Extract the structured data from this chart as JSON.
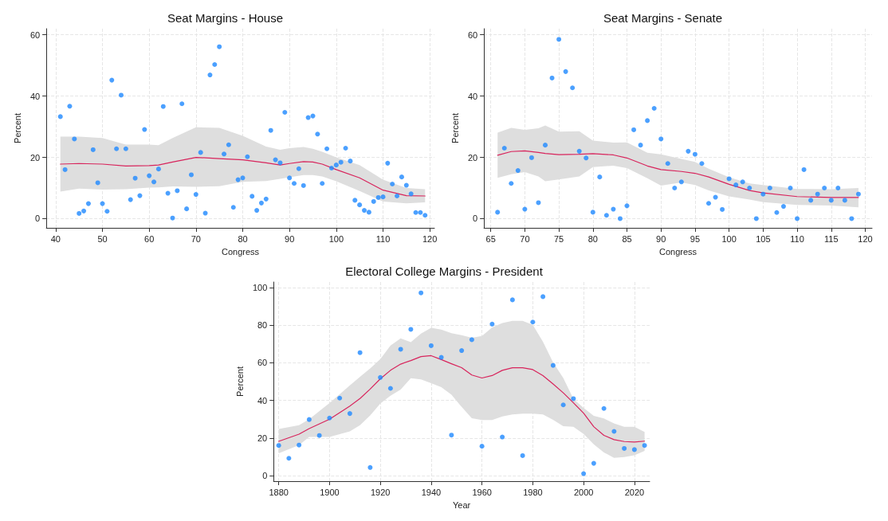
{
  "chart_data": [
    {
      "type": "scatter",
      "title": "Seat Margins - House",
      "xlabel": "Congress",
      "ylabel": "Percent",
      "xlim": [
        38,
        121
      ],
      "xticks": [
        40,
        50,
        60,
        70,
        80,
        90,
        100,
        110,
        120
      ],
      "ylim": [
        -3,
        62
      ],
      "yticks": [
        0,
        20,
        40,
        60
      ],
      "grid": true,
      "series": [
        {
          "marker": "circle",
          "color": "#1e88ff",
          "x": [
            41,
            42,
            43,
            44,
            45,
            46,
            47,
            48,
            49,
            50,
            51,
            52,
            53,
            54,
            55,
            56,
            57,
            58,
            59,
            60,
            61,
            62,
            63,
            64,
            65,
            66,
            67,
            68,
            69,
            70,
            71,
            72,
            73,
            74,
            75,
            76,
            77,
            78,
            79,
            80,
            81,
            82,
            83,
            84,
            85,
            86,
            87,
            88,
            89,
            90,
            91,
            92,
            93,
            94,
            95,
            96,
            97,
            98,
            99,
            100,
            101,
            102,
            103,
            104,
            105,
            106,
            107,
            108,
            109,
            110,
            111,
            112,
            113,
            114,
            115,
            116,
            117,
            118,
            119
          ],
          "values": [
            33.3,
            16,
            36.7,
            26,
            1.7,
            2.5,
            4.9,
            22.5,
            11.7,
            4.9,
            2.4,
            45.2,
            22.8,
            40.3,
            22.8,
            6.2,
            13.2,
            7.5,
            29.1,
            14,
            12,
            16.2,
            36.6,
            8.3,
            0.2,
            9.1,
            37.5,
            3.2,
            14.3,
            7.9,
            21.6,
            1.8,
            46.9,
            50.3,
            56.1,
            21.1,
            24.1,
            3.7,
            12.7,
            13.3,
            20.2,
            7.3,
            2.7,
            5.1,
            6.4,
            28.8,
            19.2,
            18.2,
            34.7,
            13.3,
            11.5,
            16.3,
            10.8,
            33,
            33.5,
            27.6,
            11.5,
            22.8,
            16.5,
            17.5,
            18.4,
            23,
            18.8,
            6,
            4.5,
            2.7,
            2.1,
            5.6,
            6.9,
            7.1,
            18.1,
            11.3,
            7.4,
            13.6,
            10.9,
            8.1,
            2,
            2,
            1.1
          ]
        },
        {
          "type": "line",
          "line_style": "solid",
          "color": "#d8245c",
          "x": [
            41,
            45,
            50,
            55,
            60,
            62,
            65,
            70,
            75,
            80,
            85,
            88,
            90,
            93,
            95,
            97,
            100,
            105,
            110,
            115,
            119
          ],
          "values": [
            17.8,
            18,
            17.8,
            17.2,
            17.3,
            17.5,
            18.5,
            20,
            19.6,
            19.2,
            18.2,
            17.5,
            18,
            18.6,
            18.5,
            17.8,
            16,
            13.3,
            9.3,
            7.5,
            7.4
          ],
          "lower": [
            8.8,
            9.8,
            9.5,
            9.6,
            10.1,
            10.2,
            10.5,
            10.4,
            10.6,
            12,
            12.3,
            13,
            13.5,
            14.2,
            14.2,
            13.8,
            12.2,
            9,
            5.6,
            5,
            5.3
          ],
          "upper": [
            26.8,
            26.8,
            26.3,
            24.2,
            24.2,
            24,
            26.3,
            29.8,
            29.6,
            27,
            23.5,
            22.5,
            23,
            23.4,
            22.8,
            21.8,
            20,
            17.5,
            12.7,
            10,
            9.6
          ]
        }
      ]
    },
    {
      "type": "scatter",
      "title": "Seat Margins - Senate",
      "xlabel": "Congress",
      "ylabel": "Percent",
      "xlim": [
        64,
        121
      ],
      "xticks": [
        65,
        70,
        75,
        80,
        85,
        90,
        95,
        100,
        105,
        110,
        115,
        120
      ],
      "ylim": [
        -3,
        62
      ],
      "yticks": [
        0,
        20,
        40,
        60
      ],
      "grid": true,
      "series": [
        {
          "marker": "circle",
          "color": "#1e88ff",
          "x": [
            66,
            67,
            68,
            69,
            70,
            71,
            72,
            73,
            74,
            75,
            76,
            77,
            78,
            79,
            80,
            81,
            82,
            83,
            84,
            85,
            86,
            87,
            88,
            89,
            90,
            91,
            92,
            93,
            94,
            95,
            96,
            97,
            98,
            99,
            100,
            101,
            102,
            103,
            104,
            105,
            106,
            107,
            108,
            109,
            110,
            111,
            112,
            113,
            114,
            115,
            116,
            117,
            118,
            119
          ],
          "values": [
            2.1,
            23,
            11.5,
            15.7,
            3.1,
            19.9,
            5.2,
            24,
            45.9,
            58.5,
            48,
            42.7,
            22,
            19.8,
            2.1,
            13.6,
            1.1,
            3.1,
            0,
            4.2,
            29,
            24,
            32,
            36,
            26,
            18,
            10,
            12,
            22,
            21,
            18,
            5,
            7,
            3,
            13,
            11,
            12,
            10,
            0,
            8,
            10,
            2,
            4,
            10,
            0,
            16,
            6,
            8,
            10,
            6,
            10,
            6,
            0,
            8
          ]
        },
        {
          "type": "line",
          "line_style": "solid",
          "color": "#d8245c",
          "x": [
            66,
            68,
            70,
            72,
            73,
            75,
            78,
            80,
            83,
            85,
            88,
            90,
            93,
            95,
            97,
            100,
            103,
            105,
            110,
            115,
            119
          ],
          "values": [
            20.7,
            21.9,
            22.1,
            21.6,
            21.3,
            20.9,
            21,
            21.2,
            20.8,
            19.8,
            17.2,
            16,
            15.4,
            14.8,
            13.6,
            11.2,
            9.2,
            8.4,
            7.2,
            6.9,
            6.9
          ],
          "lower": [
            13.3,
            14.5,
            15.2,
            13.8,
            12.2,
            12.8,
            13.8,
            16.8,
            17.3,
            16.5,
            13.2,
            10.8,
            11.8,
            11,
            9.2,
            7.3,
            6.2,
            5.4,
            4.5,
            4.3,
            3.7
          ],
          "upper": [
            28.1,
            29.6,
            29,
            29.5,
            30.4,
            28.4,
            28.5,
            25.5,
            24.8,
            24.9,
            21.5,
            21,
            19.5,
            18.5,
            16.3,
            13.5,
            11.5,
            11,
            9.7,
            9.6,
            10
          ]
        }
      ]
    },
    {
      "type": "scatter",
      "title": "Electoral College Margins - President",
      "xlabel": "Year",
      "ylabel": "Percent",
      "xlim": [
        1878,
        2026
      ],
      "xticks": [
        1880,
        1900,
        1920,
        1940,
        1960,
        1980,
        2000,
        2020
      ],
      "ylim": [
        -3,
        103
      ],
      "yticks": [
        0,
        20,
        40,
        60,
        80,
        100
      ],
      "grid": true,
      "series": [
        {
          "marker": "circle",
          "color": "#1e88ff",
          "x": [
            1880,
            1884,
            1888,
            1892,
            1896,
            1900,
            1904,
            1908,
            1912,
            1916,
            1920,
            1924,
            1928,
            1932,
            1936,
            1940,
            1944,
            1948,
            1952,
            1956,
            1960,
            1964,
            1968,
            1972,
            1976,
            1980,
            1984,
            1988,
            1992,
            1996,
            2000,
            2004,
            2008,
            2012,
            2016,
            2020,
            2024
          ],
          "values": [
            16,
            9.2,
            16.2,
            29.8,
            21.3,
            30.6,
            41.2,
            33,
            65.4,
            4.3,
            52.2,
            46.4,
            67.2,
            77.8,
            97.2,
            69.1,
            62.9,
            21.5,
            66.5,
            72.3,
            15.6,
            80.6,
            20.5,
            93.5,
            10.6,
            81.7,
            95.2,
            58.6,
            37.6,
            40.9,
            1,
            6.5,
            35.7,
            23.5,
            14.4,
            13.8,
            16
          ]
        },
        {
          "type": "line",
          "line_style": "solid",
          "color": "#d8245c",
          "x": [
            1880,
            1888,
            1892,
            1900,
            1908,
            1912,
            1916,
            1920,
            1924,
            1928,
            1932,
            1936,
            1940,
            1944,
            1948,
            1952,
            1956,
            1960,
            1964,
            1968,
            1972,
            1976,
            1980,
            1984,
            1988,
            1992,
            1996,
            2000,
            2004,
            2008,
            2012,
            2016,
            2020,
            2024
          ],
          "values": [
            18.2,
            22,
            25,
            30,
            37,
            41,
            46,
            51.5,
            56,
            59.3,
            61.2,
            63.3,
            63.8,
            61.7,
            59.5,
            57.4,
            53.5,
            51.9,
            53.2,
            56,
            57.4,
            57.4,
            56.4,
            53.2,
            48.7,
            44,
            38.7,
            33.2,
            26,
            21.4,
            19.1,
            18.1,
            17.8,
            18.3
          ],
          "lower": [
            11.8,
            16.2,
            20.5,
            20.5,
            23.5,
            26.8,
            32,
            38.3,
            42.5,
            45.8,
            51.8,
            51.2,
            49.2,
            47,
            43,
            36.5,
            30.5,
            29.5,
            29.5,
            31.4,
            32.5,
            32.9,
            32.9,
            32.5,
            29.7,
            26.3,
            25.9,
            22.1,
            16.6,
            12.3,
            9.4,
            9.8,
            10.8,
            13.1
          ],
          "upper": [
            24.8,
            26.8,
            30,
            38.6,
            48,
            52.5,
            57,
            62,
            69.2,
            73,
            71,
            75.5,
            78.6,
            77.7,
            75.8,
            74.7,
            73.3,
            74.3,
            78.8,
            81.2,
            82.3,
            82.3,
            80.2,
            71.2,
            60.2,
            51.9,
            40.8,
            36,
            31.8,
            30.4,
            27.7,
            25.9,
            25.9,
            23.2
          ]
        }
      ]
    }
  ]
}
